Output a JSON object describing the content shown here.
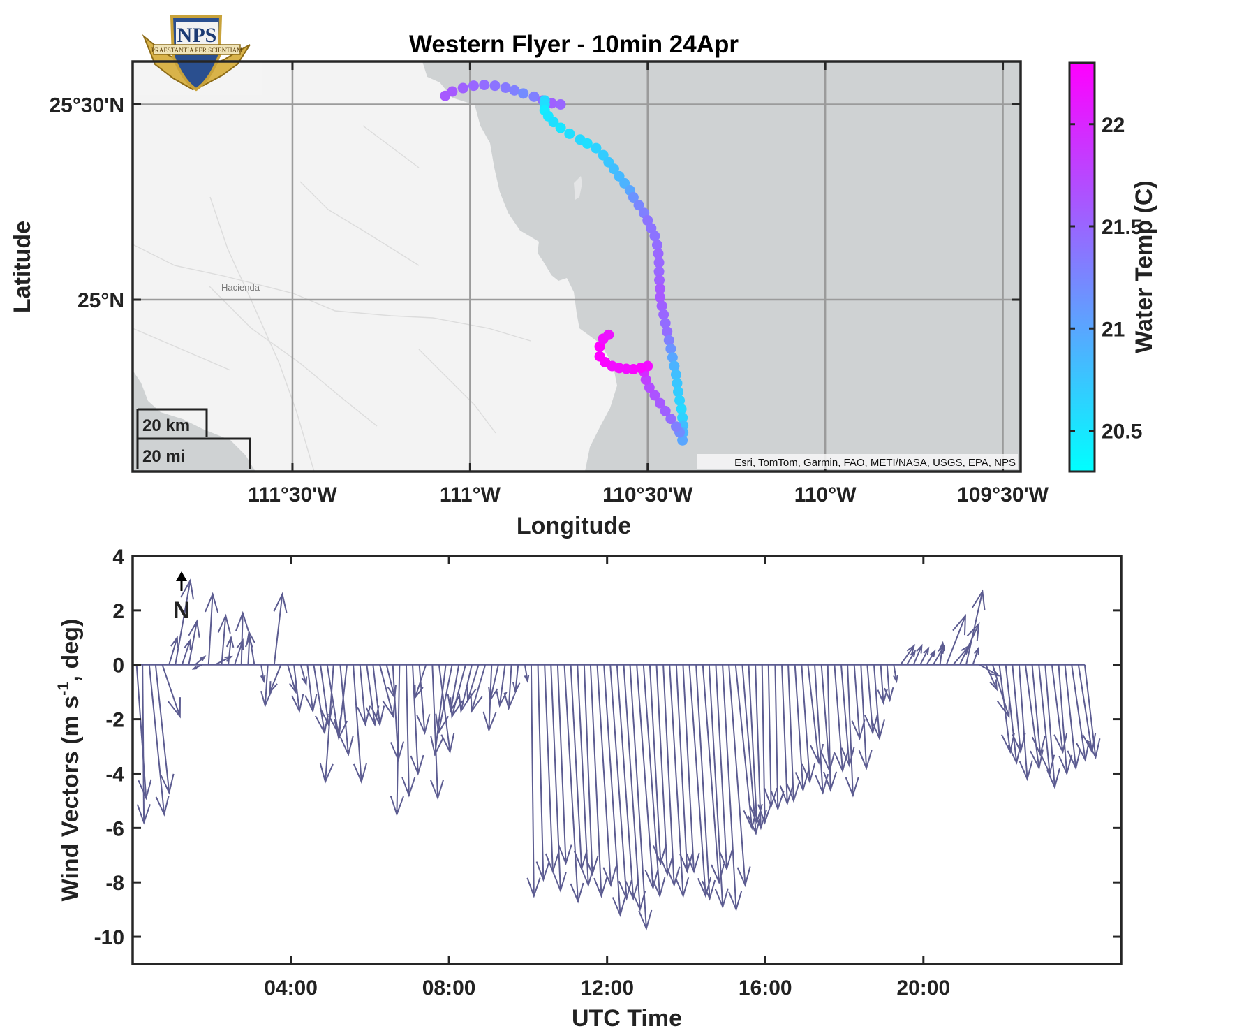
{
  "chart_data": [
    {
      "type": "scatter",
      "title": "Western Flyer - 10min 24Apr",
      "xlabel": "Longitude",
      "ylabel": "Latitude",
      "xlim": [
        -111.95,
        -109.45
      ],
      "ylim": [
        24.56,
        25.61
      ],
      "x_ticks": [
        -111.5,
        -111.0,
        -110.5,
        -110.0,
        -109.5
      ],
      "x_tick_labels": [
        "111°30'W",
        "111°W",
        "110°30'W",
        "110°W",
        "109°30'W"
      ],
      "y_ticks": [
        25.5,
        25.0
      ],
      "y_tick_labels": [
        "25°30'N",
        "25°N"
      ],
      "colorbar": {
        "label": "Water Temp (C)",
        "range": [
          20.3,
          22.3
        ],
        "ticks": [
          22,
          21.5,
          21,
          20.5
        ],
        "tick_labels": [
          "22",
          "21.5",
          "21",
          "20.5"
        ],
        "colors": [
          "#00ffff",
          "#ff00ff"
        ]
      },
      "attribution": "Esri, TomTom, Garmin, FAO, METI/NASA, USGS, EPA, NPS",
      "scale_bar": [
        "20 km",
        "20 mi"
      ],
      "place_label": "Hacienda",
      "grid": true,
      "points": [
        [
          -111.07,
          25.522,
          21.6
        ],
        [
          -111.05,
          25.533,
          21.6
        ],
        [
          -111.02,
          25.542,
          21.55
        ],
        [
          -110.99,
          25.548,
          21.5
        ],
        [
          -110.96,
          25.55,
          21.45
        ],
        [
          -110.93,
          25.548,
          21.4
        ],
        [
          -110.9,
          25.543,
          21.35
        ],
        [
          -110.875,
          25.536,
          21.3
        ],
        [
          -110.85,
          25.528,
          21.2
        ],
        [
          -110.82,
          25.52,
          21.3
        ],
        [
          -110.795,
          25.51,
          21.45
        ],
        [
          -110.77,
          25.503,
          21.55
        ],
        [
          -110.745,
          25.5,
          21.5
        ],
        [
          -110.79,
          25.51,
          20.6
        ],
        [
          -110.79,
          25.5,
          20.55
        ],
        [
          -110.79,
          25.485,
          20.45
        ],
        [
          -110.78,
          25.47,
          20.5
        ],
        [
          -110.765,
          25.455,
          20.55
        ],
        [
          -110.745,
          25.44,
          20.5
        ],
        [
          -110.72,
          25.425,
          20.55
        ],
        [
          -110.69,
          25.41,
          20.6
        ],
        [
          -110.67,
          25.4,
          20.55
        ],
        [
          -110.645,
          25.388,
          20.65
        ],
        [
          -110.625,
          25.37,
          20.7
        ],
        [
          -110.61,
          25.352,
          20.75
        ],
        [
          -110.595,
          25.335,
          20.8
        ],
        [
          -110.58,
          25.316,
          20.85
        ],
        [
          -110.565,
          25.298,
          20.9
        ],
        [
          -110.55,
          25.28,
          21.0
        ],
        [
          -110.54,
          25.262,
          21.15
        ],
        [
          -110.525,
          25.242,
          21.25
        ],
        [
          -110.51,
          25.222,
          21.3
        ],
        [
          -110.5,
          25.203,
          21.4
        ],
        [
          -110.49,
          25.183,
          21.4
        ],
        [
          -110.48,
          25.163,
          21.4
        ],
        [
          -110.473,
          25.14,
          21.45
        ],
        [
          -110.47,
          25.118,
          21.5
        ],
        [
          -110.468,
          25.095,
          21.5
        ],
        [
          -110.468,
          25.072,
          21.5
        ],
        [
          -110.467,
          25.05,
          21.55
        ],
        [
          -110.465,
          25.028,
          21.6
        ],
        [
          -110.465,
          25.006,
          21.6
        ],
        [
          -110.46,
          24.984,
          21.55
        ],
        [
          -110.455,
          24.962,
          21.5
        ],
        [
          -110.45,
          24.94,
          21.45
        ],
        [
          -110.445,
          24.918,
          21.45
        ],
        [
          -110.44,
          24.896,
          21.3
        ],
        [
          -110.435,
          24.874,
          21.15
        ],
        [
          -110.43,
          24.852,
          21.0
        ],
        [
          -110.425,
          24.83,
          20.9
        ],
        [
          -110.42,
          24.808,
          20.8
        ],
        [
          -110.417,
          24.786,
          20.75
        ],
        [
          -110.414,
          24.764,
          20.7
        ],
        [
          -110.41,
          24.742,
          20.65
        ],
        [
          -110.405,
          24.72,
          20.6
        ],
        [
          -110.402,
          24.698,
          20.65
        ],
        [
          -110.4,
          24.678,
          20.8
        ],
        [
          -110.4,
          24.66,
          20.9
        ],
        [
          -110.402,
          24.64,
          21.0
        ],
        [
          -110.41,
          24.66,
          21.2
        ],
        [
          -110.42,
          24.675,
          21.3
        ],
        [
          -110.435,
          24.695,
          21.45
        ],
        [
          -110.45,
          24.715,
          21.55
        ],
        [
          -110.465,
          24.735,
          21.6
        ],
        [
          -110.48,
          24.755,
          21.65
        ],
        [
          -110.495,
          24.775,
          21.7
        ],
        [
          -110.505,
          24.795,
          21.8
        ],
        [
          -110.51,
          24.815,
          21.95
        ],
        [
          -110.5,
          24.83,
          22.2
        ],
        [
          -110.52,
          24.825,
          22.25
        ],
        [
          -110.54,
          24.822,
          22.25
        ],
        [
          -110.56,
          24.823,
          22.2
        ],
        [
          -110.58,
          24.825,
          22.2
        ],
        [
          -110.6,
          24.83,
          22.2
        ],
        [
          -110.62,
          24.84,
          22.25
        ],
        [
          -110.635,
          24.855,
          22.3
        ],
        [
          -110.635,
          24.88,
          22.3
        ],
        [
          -110.625,
          24.9,
          22.2
        ],
        [
          -110.61,
          24.91,
          22.15
        ]
      ]
    },
    {
      "type": "quiver",
      "xlabel": "UTC Time",
      "ylabel": "Wind Vectors (m s^-1, deg)",
      "ylabel_parts": [
        "Wind Vectors (m s",
        "-1",
        ", deg)"
      ],
      "ylim": [
        -11,
        4
      ],
      "xlim_hours": [
        0,
        25
      ],
      "y_ticks": [
        4,
        2,
        0,
        -2,
        -4,
        -6,
        -8,
        -10
      ],
      "y_tick_labels": [
        "4",
        "2",
        "0",
        "-2",
        "-4",
        "-6",
        "-8",
        "-10"
      ],
      "x_ticks_hours": [
        4,
        8,
        12,
        16,
        20
      ],
      "x_tick_labels": [
        "04:00",
        "08:00",
        "12:00",
        "16:00",
        "20:00"
      ],
      "north_label": "N",
      "color": "#5c5c91",
      "vectors": [
        [
          0.1,
          0.35,
          -4.9
        ],
        [
          0.25,
          0.05,
          -5.8
        ],
        [
          0.42,
          0.55,
          -5.5
        ],
        [
          0.58,
          0.5,
          -4.7
        ],
        [
          0.75,
          0.65,
          -1.9
        ],
        [
          0.92,
          0.3,
          1.0
        ],
        [
          1.08,
          0.55,
          3.1
        ],
        [
          1.25,
          0.3,
          0.9
        ],
        [
          1.42,
          0.3,
          1.6
        ],
        [
          1.58,
          0.35,
          0.3
        ],
        [
          1.75,
          -0.3,
          -0.15
        ],
        [
          1.92,
          0.15,
          2.6
        ],
        [
          2.08,
          0.6,
          0.3
        ],
        [
          2.25,
          0.15,
          1.8
        ],
        [
          2.42,
          0.1,
          1.0
        ],
        [
          2.58,
          0.3,
          0.9
        ],
        [
          2.75,
          0.05,
          1.9
        ],
        [
          2.92,
          0.05,
          1.0
        ],
        [
          3.08,
          -0.2,
          1.2
        ],
        [
          3.25,
          0.1,
          -0.6
        ],
        [
          3.42,
          -0.1,
          -1.5
        ],
        [
          3.58,
          0.3,
          2.6
        ],
        [
          3.75,
          -0.4,
          -1.0
        ],
        [
          3.92,
          0.3,
          -1.0
        ],
        [
          4.08,
          0.2,
          -1.7
        ],
        [
          4.25,
          0.2,
          -0.7
        ],
        [
          4.42,
          0.2,
          -1.7
        ],
        [
          4.58,
          0.4,
          -2.5
        ],
        [
          4.75,
          0.3,
          -2.2
        ],
        [
          4.92,
          0.4,
          -2.5
        ],
        [
          5.08,
          -0.3,
          -4.3
        ],
        [
          5.25,
          0.3,
          -3.3
        ],
        [
          5.42,
          -0.3,
          -2.7
        ],
        [
          5.58,
          0.3,
          -4.3
        ],
        [
          5.75,
          0.2,
          -2.2
        ],
        [
          5.92,
          0.3,
          -2.2
        ],
        [
          6.08,
          0.25,
          -2.2
        ],
        [
          6.25,
          0.5,
          -1.9
        ],
        [
          6.42,
          0.3,
          -1.2
        ],
        [
          6.58,
          0.2,
          -3.5
        ],
        [
          6.75,
          -0.1,
          -5.5
        ],
        [
          6.92,
          0.1,
          -4.8
        ],
        [
          7.08,
          0.2,
          -4.0
        ],
        [
          7.25,
          0.2,
          -2.5
        ],
        [
          7.42,
          -0.4,
          -1.2
        ],
        [
          7.58,
          0.2,
          -4.9
        ],
        [
          7.75,
          0.4,
          -3.2
        ],
        [
          7.92,
          -0.4,
          -3.3
        ],
        [
          8.08,
          -0.5,
          -2.5
        ],
        [
          8.25,
          -0.3,
          -1.7
        ],
        [
          8.42,
          -0.5,
          -1.9
        ],
        [
          8.58,
          -0.4,
          -1.7
        ],
        [
          8.75,
          -0.4,
          -1.3
        ],
        [
          8.92,
          -0.5,
          -1.7
        ],
        [
          9.08,
          -0.1,
          -2.4
        ],
        [
          9.25,
          -0.3,
          -1.3
        ],
        [
          9.42,
          -0.2,
          -1.5
        ],
        [
          9.58,
          -0.1,
          -1.6
        ],
        [
          9.75,
          -0.1,
          -1.0
        ],
        [
          9.92,
          0.1,
          -0.6
        ],
        [
          10.08,
          0.1,
          -8.5
        ],
        [
          10.25,
          0.2,
          -7.9
        ],
        [
          10.42,
          0.3,
          -7.6
        ],
        [
          10.58,
          0.35,
          -8.3
        ],
        [
          10.75,
          0.3,
          -7.3
        ],
        [
          10.92,
          0.5,
          -8.7
        ],
        [
          11.08,
          0.4,
          -7.5
        ],
        [
          11.25,
          0.4,
          -8.1
        ],
        [
          11.42,
          0.3,
          -7.7
        ],
        [
          11.58,
          0.4,
          -8.5
        ],
        [
          11.75,
          0.5,
          -8.1
        ],
        [
          11.92,
          0.6,
          -9.2
        ],
        [
          12.08,
          0.6,
          -8.6
        ],
        [
          12.25,
          0.6,
          -8.6
        ],
        [
          12.42,
          0.6,
          -9.0
        ],
        [
          12.58,
          0.6,
          -9.7
        ],
        [
          12.75,
          0.6,
          -8.2
        ],
        [
          12.92,
          0.6,
          -8.5
        ],
        [
          13.08,
          0.4,
          -7.3
        ],
        [
          13.25,
          0.4,
          -7.7
        ],
        [
          13.42,
          0.4,
          -8.1
        ],
        [
          13.58,
          0.5,
          -8.5
        ],
        [
          13.75,
          0.4,
          -7.6
        ],
        [
          13.92,
          0.4,
          -7.6
        ],
        [
          14.08,
          0.6,
          -8.5
        ],
        [
          14.25,
          0.5,
          -8.6
        ],
        [
          14.42,
          0.6,
          -8.0
        ],
        [
          14.58,
          0.5,
          -8.9
        ],
        [
          14.75,
          0.4,
          -7.5
        ],
        [
          14.92,
          0.5,
          -9.0
        ],
        [
          15.08,
          0.6,
          -8.1
        ],
        [
          15.25,
          0.6,
          -6.0
        ],
        [
          15.42,
          0.5,
          -6.2
        ],
        [
          15.58,
          0.3,
          -5.8
        ],
        [
          15.75,
          0.2,
          -6.0
        ],
        [
          15.92,
          0.1,
          -5.8
        ],
        [
          16.08,
          0.1,
          -5.2
        ],
        [
          16.25,
          0.1,
          -5.3
        ],
        [
          16.42,
          0.2,
          -5.1
        ],
        [
          16.58,
          0.2,
          -5.0
        ],
        [
          16.75,
          0.3,
          -4.6
        ],
        [
          16.92,
          0.3,
          -4.3
        ],
        [
          17.08,
          0.4,
          -3.6
        ],
        [
          17.25,
          0.3,
          -4.7
        ],
        [
          17.42,
          0.3,
          -3.9
        ],
        [
          17.58,
          0.1,
          -4.6
        ],
        [
          17.75,
          0.3,
          -3.9
        ],
        [
          17.92,
          0.3,
          -3.7
        ],
        [
          18.08,
          0.2,
          -4.8
        ],
        [
          18.25,
          0.2,
          -2.7
        ],
        [
          18.42,
          0.2,
          -3.8
        ],
        [
          18.58,
          0.2,
          -2.5
        ],
        [
          18.75,
          0.2,
          -2.7
        ],
        [
          18.92,
          0.1,
          -1.4
        ],
        [
          19.08,
          0.1,
          -1.3
        ],
        [
          19.25,
          0.1,
          -0.6
        ],
        [
          19.42,
          0.5,
          0.7
        ],
        [
          19.58,
          0.3,
          0.5
        ],
        [
          19.75,
          0.3,
          0.7
        ],
        [
          19.92,
          0.3,
          0.6
        ],
        [
          20.08,
          0.3,
          0.5
        ],
        [
          20.25,
          0.4,
          0.7
        ],
        [
          20.42,
          0.1,
          0.8
        ],
        [
          20.58,
          0.7,
          1.8
        ],
        [
          20.75,
          0.6,
          0.7
        ],
        [
          20.92,
          0.7,
          1.5
        ],
        [
          21.08,
          0.6,
          2.7
        ],
        [
          21.25,
          0.2,
          0.6
        ],
        [
          21.42,
          0.7,
          -0.4
        ],
        [
          21.58,
          0.4,
          -0.9
        ],
        [
          21.75,
          0.6,
          -1.9
        ],
        [
          21.92,
          0.4,
          -3.2
        ],
        [
          22.08,
          0.4,
          -3.6
        ],
        [
          22.25,
          0.3,
          -3.2
        ],
        [
          22.42,
          0.3,
          -4.2
        ],
        [
          22.58,
          0.5,
          -3.8
        ],
        [
          22.75,
          0.3,
          -3.3
        ],
        [
          22.92,
          0.4,
          -4.0
        ],
        [
          23.08,
          0.35,
          -4.5
        ],
        [
          23.25,
          0.4,
          -3.2
        ],
        [
          23.42,
          0.3,
          -4.0
        ],
        [
          23.58,
          0.4,
          -3.8
        ],
        [
          23.75,
          0.5,
          -3.5
        ],
        [
          23.92,
          0.5,
          -3.2
        ],
        [
          24.08,
          0.4,
          -3.4
        ]
      ]
    }
  ]
}
